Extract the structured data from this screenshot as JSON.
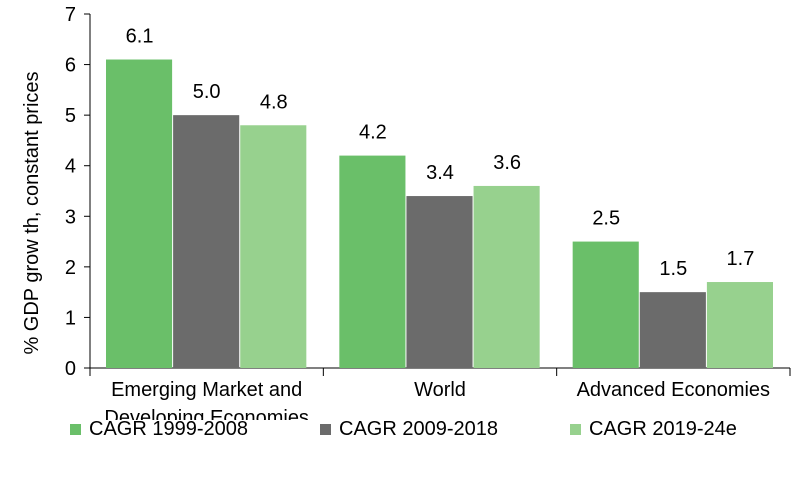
{
  "chart_data": {
    "type": "bar",
    "ylabel": "% GDP grow th, constant prices",
    "xlabel": "",
    "ylim": [
      0,
      7
    ],
    "yticks": [
      "0",
      "1",
      "2",
      "3",
      "4",
      "5",
      "6",
      "7"
    ],
    "categories": [
      [
        "Emerging Market and",
        "Developing Economies"
      ],
      [
        "World"
      ],
      [
        "Advanced Economies"
      ]
    ],
    "series": [
      {
        "name": "CAGR 1999-2008",
        "color": "#6abf69",
        "values": [
          6.1,
          4.2,
          2.5
        ],
        "labels": [
          "6.1",
          "4.2",
          "2.5"
        ]
      },
      {
        "name": "CAGR 2009-2018",
        "color": "#6b6b6b",
        "values": [
          5.0,
          3.4,
          1.5
        ],
        "labels": [
          "5.0",
          "3.4",
          "1.5"
        ]
      },
      {
        "name": "CAGR 2019-24e",
        "color": "#97d18e",
        "values": [
          4.8,
          3.6,
          1.7
        ],
        "labels": [
          "4.8",
          "3.6",
          "1.7"
        ]
      }
    ],
    "grid": false,
    "legend_position": "bottom"
  }
}
